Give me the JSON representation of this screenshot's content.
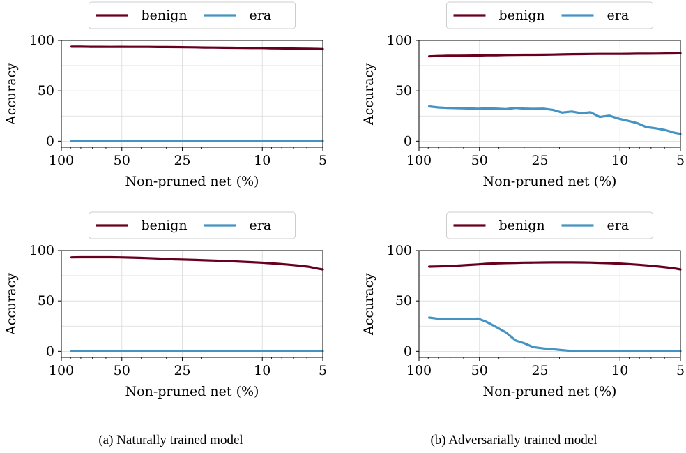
{
  "chart_data": [
    {
      "type": "line",
      "panel": "top-left",
      "x_scale": "log-reversed",
      "xlim": [
        100,
        5
      ],
      "ylim": [
        -6,
        100
      ],
      "xticks": [
        "100",
        "50",
        "25",
        "10",
        "5"
      ],
      "yticks": [
        "0",
        "50",
        "100"
      ],
      "xlabel": "Non-pruned net (%)",
      "ylabel": "Accuracy",
      "grid": true,
      "legend_placement": "top-center",
      "x": [
        89,
        80,
        72,
        64,
        57,
        51,
        46,
        41,
        37,
        33,
        30,
        27,
        24,
        21.6,
        19.4,
        17.4,
        15.6,
        14,
        12.6,
        11.3,
        10.1,
        9.1,
        8.2,
        7.4,
        6.6,
        5.9,
        5.3,
        5
      ],
      "series": [
        {
          "name": "benign",
          "color": "#67001f",
          "values": [
            93.8,
            93.8,
            93.7,
            93.7,
            93.6,
            93.7,
            93.6,
            93.6,
            93.6,
            93.5,
            93.5,
            93.4,
            93.3,
            93.2,
            93,
            92.9,
            92.8,
            92.7,
            92.6,
            92.5,
            92.5,
            92.3,
            92.2,
            92,
            91.9,
            91.8,
            91.6,
            91.5
          ]
        },
        {
          "name": "era",
          "color": "#4393c3",
          "values": [
            0.2,
            0.2,
            0.2,
            0.2,
            0.2,
            0.2,
            0.2,
            0.2,
            0.2,
            0.2,
            0.2,
            0.2,
            0.3,
            0.3,
            0.3,
            0.3,
            0.3,
            0.3,
            0.3,
            0.3,
            0.3,
            0.3,
            0.3,
            0.3,
            0.2,
            0.2,
            0.2,
            0.2
          ]
        }
      ]
    },
    {
      "type": "line",
      "panel": "top-right",
      "x_scale": "log-reversed",
      "xlim": [
        100,
        5
      ],
      "ylim": [
        -6,
        100
      ],
      "xticks": [
        "100",
        "50",
        "25",
        "10",
        "5"
      ],
      "yticks": [
        "0",
        "50",
        "100"
      ],
      "xlabel": "Non-pruned net (%)",
      "ylabel": "Accuracy",
      "grid": true,
      "legend_placement": "top-center",
      "x": [
        89,
        80,
        72,
        64,
        57,
        51,
        46,
        41,
        37,
        33,
        30,
        27,
        24,
        21.6,
        19.4,
        17.4,
        15.6,
        14,
        12.6,
        11.3,
        10.1,
        9.1,
        8.2,
        7.4,
        6.6,
        5.9,
        5.3,
        5
      ],
      "series": [
        {
          "name": "benign",
          "color": "#67001f",
          "values": [
            84.3,
            84.6,
            84.8,
            84.9,
            85,
            85.1,
            85.3,
            85.3,
            85.6,
            85.7,
            85.8,
            85.8,
            85.9,
            86,
            86.2,
            86.4,
            86.5,
            86.6,
            86.7,
            86.7,
            86.7,
            86.8,
            86.9,
            86.9,
            87,
            87.1,
            87.2,
            87.3
          ]
        },
        {
          "name": "era",
          "color": "#4393c3",
          "values": [
            34.5,
            33.5,
            33,
            32.8,
            32.5,
            32.2,
            32.5,
            32.3,
            31.8,
            33,
            32.4,
            32.1,
            32.3,
            31.1,
            28.4,
            29.5,
            27.8,
            28.7,
            24.1,
            25.4,
            22.3,
            20.2,
            17.9,
            14.1,
            12.8,
            10.9,
            8.2,
            7.4
          ]
        }
      ]
    },
    {
      "type": "line",
      "panel": "bottom-left",
      "x_scale": "log-reversed",
      "xlim": [
        100,
        5
      ],
      "ylim": [
        -6,
        100
      ],
      "xticks": [
        "100",
        "50",
        "25",
        "10",
        "5"
      ],
      "yticks": [
        "0",
        "50",
        "100"
      ],
      "xlabel": "Non-pruned net (%)",
      "ylabel": "Accuracy",
      "grid": true,
      "legend_placement": "top-center",
      "x": [
        89,
        80,
        72,
        64,
        57,
        51,
        46,
        41,
        37,
        33,
        30,
        27,
        24,
        21.6,
        19.4,
        17.4,
        15.6,
        14,
        12.6,
        11.3,
        10.1,
        9.1,
        8.2,
        7.4,
        6.6,
        5.9,
        5.3,
        5
      ],
      "series": [
        {
          "name": "benign",
          "color": "#67001f",
          "values": [
            93.3,
            93.4,
            93.4,
            93.4,
            93.4,
            93.3,
            93.1,
            92.8,
            92.5,
            92.1,
            91.7,
            91.3,
            91,
            90.7,
            90.4,
            90.1,
            89.7,
            89.3,
            88.9,
            88.5,
            88,
            87.4,
            86.8,
            86,
            85.1,
            84,
            82.1,
            81.2
          ]
        },
        {
          "name": "era",
          "color": "#4393c3",
          "values": [
            0.1,
            0.1,
            0.1,
            0.1,
            0.1,
            0.1,
            0.1,
            0.1,
            0.1,
            0.1,
            0.1,
            0.1,
            0.1,
            0.1,
            0.1,
            0.1,
            0.1,
            0.1,
            0.1,
            0.1,
            0.1,
            0.1,
            0.1,
            0.1,
            0.1,
            0.1,
            0.1,
            0.1
          ]
        }
      ]
    },
    {
      "type": "line",
      "panel": "bottom-right",
      "x_scale": "log-reversed",
      "xlim": [
        100,
        5
      ],
      "ylim": [
        -6,
        100
      ],
      "xticks": [
        "100",
        "50",
        "25",
        "10",
        "5"
      ],
      "yticks": [
        "0",
        "50",
        "100"
      ],
      "xlabel": "Non-pruned net (%)",
      "ylabel": "Accuracy",
      "grid": true,
      "legend_placement": "top-center",
      "x": [
        89,
        80,
        72,
        64,
        57,
        51,
        46,
        41,
        37,
        33,
        30,
        27,
        24,
        21.6,
        19.4,
        17.4,
        15.6,
        14,
        12.6,
        11.3,
        10.1,
        9.1,
        8.2,
        7.4,
        6.6,
        5.9,
        5.3,
        5
      ],
      "series": [
        {
          "name": "benign",
          "color": "#67001f",
          "values": [
            84.1,
            84.3,
            84.6,
            85.1,
            85.7,
            86.3,
            86.9,
            87.3,
            87.6,
            87.8,
            88,
            88.1,
            88.2,
            88.3,
            88.3,
            88.3,
            88.2,
            88.1,
            87.8,
            87.5,
            87.1,
            86.6,
            86,
            85.3,
            84.4,
            83.4,
            82.2,
            81.3
          ]
        },
        {
          "name": "era",
          "color": "#4393c3",
          "values": [
            33.5,
            32.3,
            32,
            32.4,
            31.8,
            32.6,
            29.1,
            23.8,
            18.9,
            10.7,
            8.1,
            4.2,
            2.9,
            2.1,
            1.2,
            0.4,
            0.2,
            0.1,
            0.1,
            0.1,
            0.1,
            0.1,
            0.1,
            0.1,
            0.1,
            0.1,
            0.1,
            0.1
          ]
        }
      ]
    }
  ],
  "captions": {
    "a": "(a) Naturally trained model",
    "b": "(b) Adversarially trained model"
  }
}
